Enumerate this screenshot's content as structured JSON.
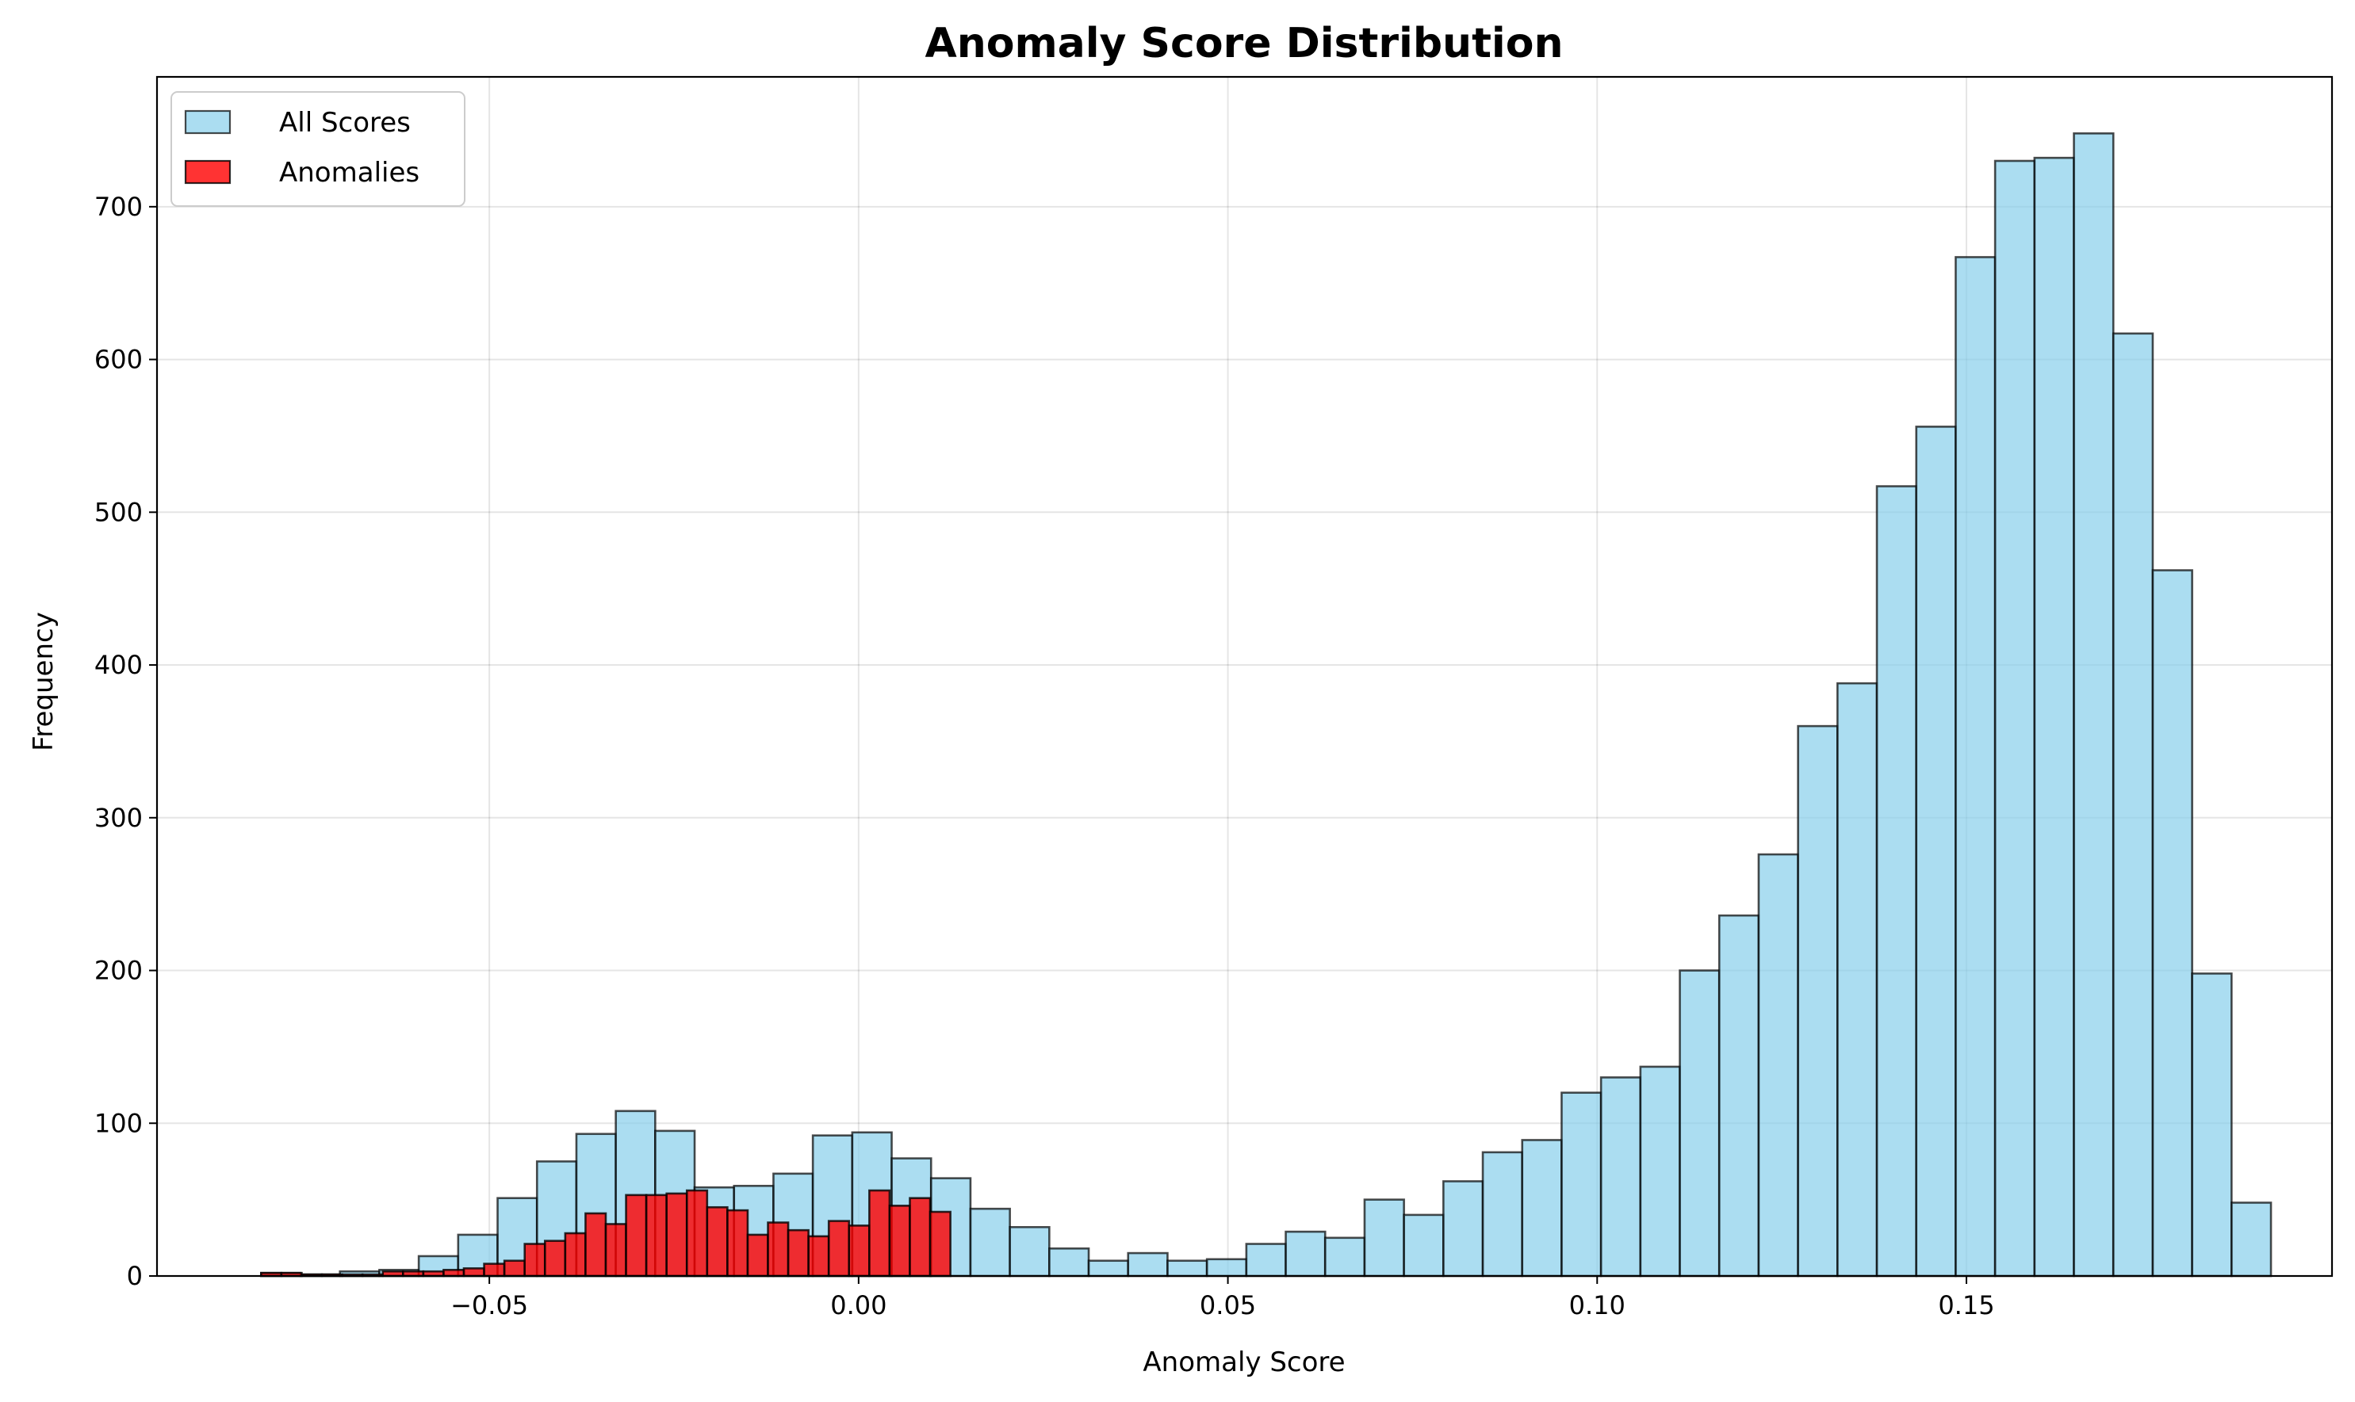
{
  "chart_data": {
    "type": "bar",
    "title": "Anomaly Score Distribution",
    "xlabel": "Anomaly Score",
    "ylabel": "Frequency",
    "xlim": [
      -0.095,
      0.1995
    ],
    "ylim": [
      0,
      785
    ],
    "xticks": [
      -0.05,
      0.0,
      0.05,
      0.1,
      0.15
    ],
    "xtick_labels": [
      "−0.05",
      "0.00",
      "0.05",
      "0.10",
      "0.15"
    ],
    "yticks": [
      0,
      100,
      200,
      300,
      400,
      500,
      600,
      700
    ],
    "ytick_labels": [
      "0",
      "100",
      "200",
      "300",
      "400",
      "500",
      "600",
      "700"
    ],
    "grid": true,
    "legend_position": "top-left",
    "series": [
      {
        "name": "All Scores",
        "color": "#87ceeb",
        "bin_start": -0.0809,
        "bin_width": 0.005336,
        "values": [
          2,
          1,
          3,
          4,
          13,
          27,
          51,
          75,
          93,
          108,
          95,
          58,
          59,
          67,
          92,
          94,
          77,
          64,
          44,
          32,
          18,
          10,
          15,
          10,
          11,
          21,
          29,
          25,
          50,
          40,
          62,
          81,
          89,
          120,
          130,
          137,
          200,
          236,
          276,
          360,
          388,
          517,
          556,
          667,
          730,
          732,
          748,
          617,
          462,
          198,
          48
        ]
      },
      {
        "name": "Anomalies",
        "color": "#ff0000",
        "bin_start": -0.0809,
        "bin_width": 0.002745,
        "values": [
          2,
          2,
          1,
          1,
          1,
          1,
          3,
          3,
          3,
          4,
          5,
          8,
          10,
          21,
          23,
          28,
          41,
          34,
          53,
          53,
          54,
          56,
          45,
          43,
          27,
          35,
          30,
          26,
          36,
          33,
          56,
          46,
          51,
          42
        ]
      }
    ]
  }
}
